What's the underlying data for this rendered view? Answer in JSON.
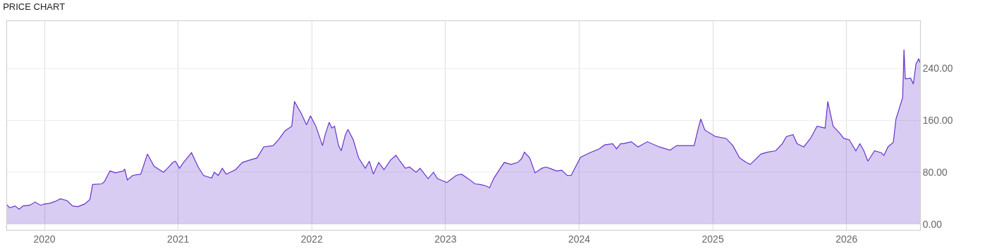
{
  "chart_data": {
    "type": "area",
    "title": "PRICE CHART",
    "x": [
      2019.72,
      2019.74,
      2019.78,
      2019.81,
      2019.84,
      2019.89,
      2019.93,
      2019.97,
      2020.0,
      2020.04,
      2020.08,
      2020.12,
      2020.17,
      2020.21,
      2020.25,
      2020.3,
      2020.34,
      2020.36,
      2020.43,
      2020.45,
      2020.49,
      2020.53,
      2020.59,
      2020.6,
      2020.62,
      2020.66,
      2020.72,
      2020.77,
      2020.82,
      2020.89,
      2020.92,
      2020.96,
      2020.98,
      2021.01,
      2021.04,
      2021.1,
      2021.15,
      2021.19,
      2021.25,
      2021.27,
      2021.3,
      2021.33,
      2021.36,
      2021.43,
      2021.48,
      2021.54,
      2021.59,
      2021.64,
      2021.71,
      2021.75,
      2021.8,
      2021.85,
      2021.87,
      2021.92,
      2021.96,
      2021.99,
      2022.03,
      2022.08,
      2022.1,
      2022.13,
      2022.15,
      2022.17,
      2022.2,
      2022.22,
      2022.25,
      2022.27,
      2022.31,
      2022.35,
      2022.4,
      2022.43,
      2022.46,
      2022.5,
      2022.54,
      2022.59,
      2022.63,
      2022.66,
      2022.7,
      2022.73,
      2022.78,
      2022.81,
      2022.87,
      2022.91,
      2022.94,
      2023.01,
      2023.08,
      2023.12,
      2023.17,
      2023.22,
      2023.26,
      2023.3,
      2023.33,
      2023.36,
      2023.41,
      2023.44,
      2023.49,
      2023.54,
      2023.57,
      2023.59,
      2023.63,
      2023.67,
      2023.72,
      2023.75,
      2023.78,
      2023.83,
      2023.87,
      2023.91,
      2023.94,
      2023.98,
      2024.01,
      2024.08,
      2024.15,
      2024.19,
      2024.25,
      2024.28,
      2024.31,
      2024.33,
      2024.39,
      2024.44,
      2024.51,
      2024.6,
      2024.68,
      2024.73,
      2024.81,
      2024.86,
      2024.89,
      2024.91,
      2024.94,
      2025.02,
      2025.1,
      2025.15,
      2025.2,
      2025.25,
      2025.28,
      2025.36,
      2025.41,
      2025.47,
      2025.52,
      2025.55,
      2025.6,
      2025.63,
      2025.68,
      2025.73,
      2025.78,
      2025.84,
      2025.86,
      2025.9,
      2025.95,
      2025.98,
      2026.02,
      2026.07,
      2026.1,
      2026.13,
      2026.16,
      2026.21,
      2026.26,
      2026.28,
      2026.31,
      2026.35,
      2026.37,
      2026.42,
      2026.43,
      2026.44,
      2026.48,
      2026.5,
      2026.52,
      2026.54,
      2026.55
    ],
    "series": [
      {
        "color": "#6633cc",
        "values": [
          30,
          25,
          28,
          23,
          28,
          29,
          34,
          29,
          31,
          32,
          35,
          39,
          36,
          28,
          27,
          31,
          38,
          61,
          62,
          66,
          82,
          79,
          82,
          85,
          68,
          75,
          77,
          108,
          89,
          80,
          86,
          95,
          97,
          86,
          95,
          110,
          88,
          75,
          71,
          80,
          75,
          86,
          77,
          84,
          95,
          99,
          102,
          119,
          121,
          130,
          144,
          151,
          189,
          171,
          153,
          167,
          151,
          121,
          138,
          157,
          148,
          151,
          121,
          113,
          137,
          146,
          130,
          102,
          86,
          97,
          77,
          95,
          84,
          99,
          106,
          97,
          86,
          88,
          80,
          86,
          70,
          80,
          70,
          64,
          75,
          77,
          70,
          62,
          61,
          59,
          56,
          70,
          86,
          95,
          92,
          95,
          101,
          111,
          102,
          79,
          86,
          88,
          86,
          82,
          83,
          75,
          75,
          91,
          103,
          110,
          116,
          122,
          124,
          116,
          124,
          124,
          127,
          119,
          127,
          119,
          114,
          121,
          121,
          121,
          147,
          162,
          145,
          135,
          132,
          121,
          102,
          95,
          92,
          108,
          111,
          113,
          124,
          135,
          138,
          124,
          119,
          132,
          151,
          148,
          189,
          151,
          140,
          132,
          130,
          113,
          124,
          113,
          97,
          113,
          110,
          106,
          119,
          126,
          162,
          195,
          269,
          224,
          225,
          216,
          247,
          255,
          249
        ]
      }
    ],
    "xlim": [
      2019.72,
      2026.55
    ],
    "xticks": [
      2020,
      2021,
      2022,
      2023,
      2024,
      2025,
      2026
    ],
    "ylim": [
      -9,
      313
    ],
    "yticks": [
      {
        "value": 0,
        "label": "0.00"
      },
      {
        "value": 80,
        "label": "80.00"
      },
      {
        "value": 160,
        "label": "160.00"
      },
      {
        "value": 240,
        "label": "240.00"
      }
    ],
    "grid": true
  }
}
